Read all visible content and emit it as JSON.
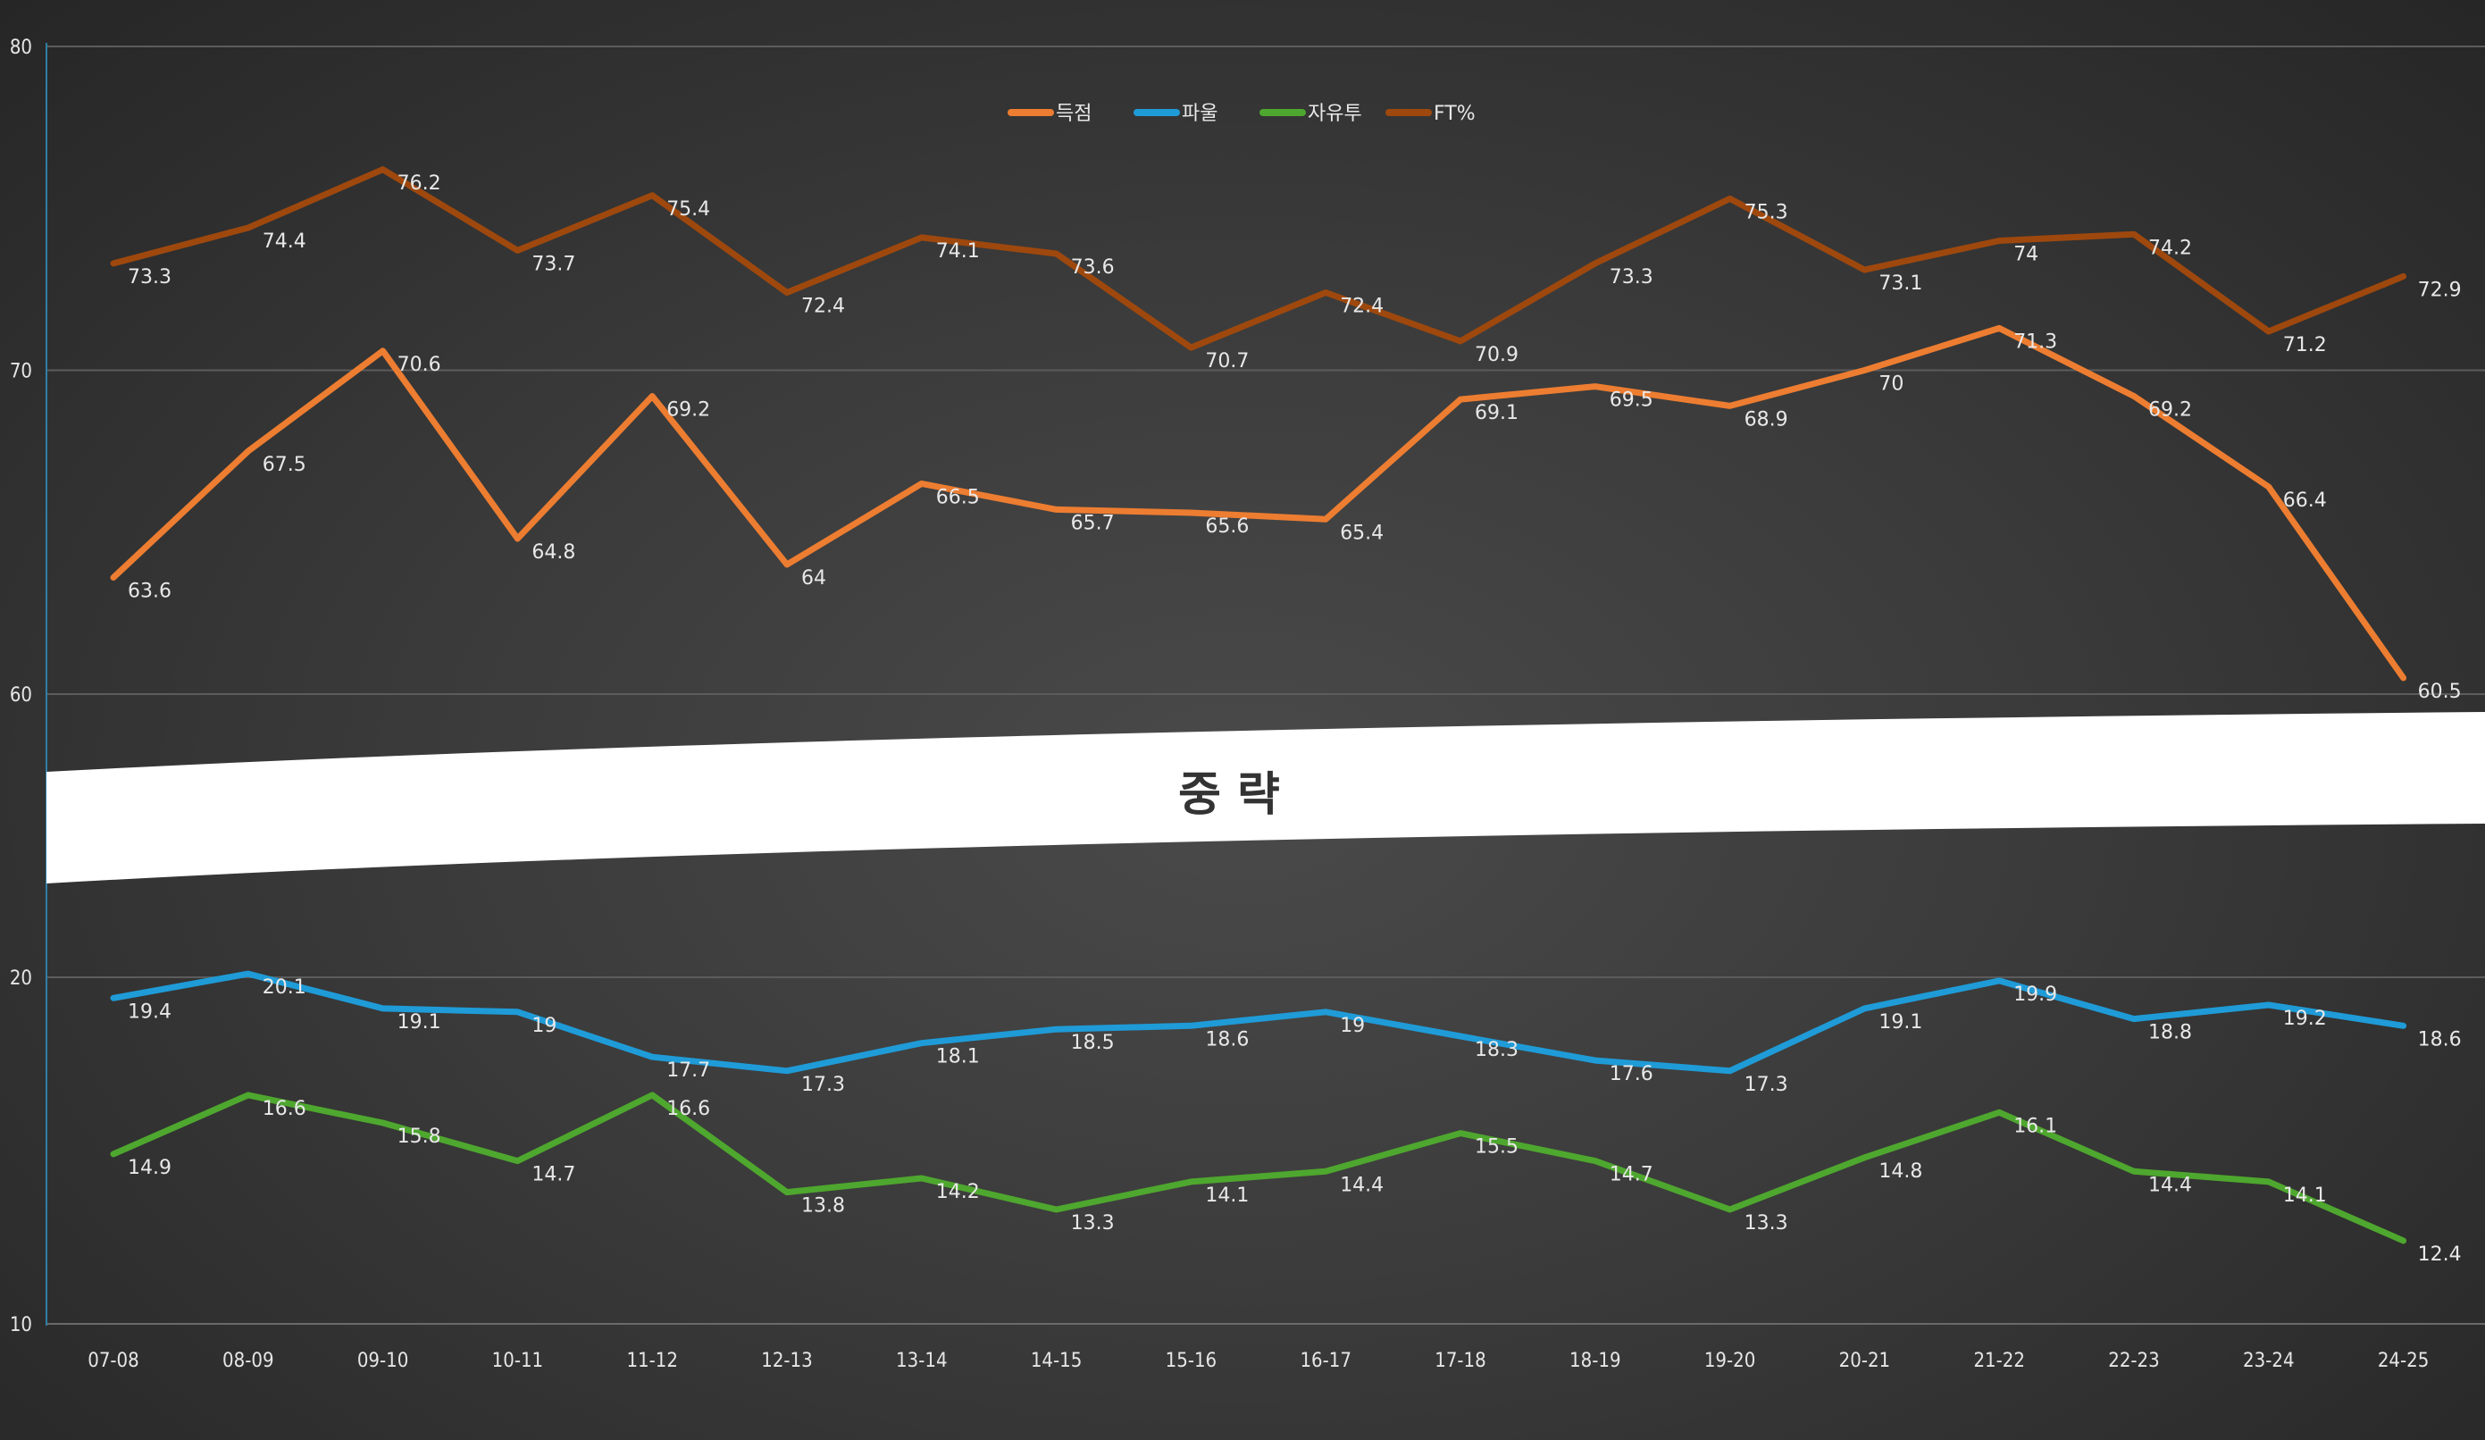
{
  "chart_data": {
    "type": "line",
    "categories": [
      "07-08",
      "08-09",
      "09-10",
      "10-11",
      "11-12",
      "12-13",
      "13-14",
      "14-15",
      "15-16",
      "16-17",
      "17-18",
      "18-19",
      "19-20",
      "20-21",
      "21-22",
      "22-23",
      "23-24",
      "24-25"
    ],
    "y_axis": {
      "broken": true,
      "upper_range": [
        60,
        80
      ],
      "lower_range": [
        10,
        20
      ],
      "ticks": [
        80,
        70,
        60,
        20,
        10
      ]
    },
    "break_label": "중략",
    "grid": true,
    "legend_position": "top",
    "series": [
      {
        "name": "득점",
        "color": "#ed7d31",
        "values": [
          63.6,
          67.5,
          70.6,
          64.8,
          69.2,
          64,
          66.5,
          65.7,
          65.6,
          65.4,
          69.1,
          69.5,
          68.9,
          70,
          71.3,
          69.2,
          66.4,
          60.5
        ]
      },
      {
        "name": "파울",
        "color": "#1f9bd7",
        "values": [
          19.4,
          20.1,
          19.1,
          19,
          17.7,
          17.3,
          18.1,
          18.5,
          18.6,
          19,
          18.3,
          17.6,
          17.3,
          19.1,
          19.9,
          18.8,
          19.2,
          18.6
        ]
      },
      {
        "name": "자유투",
        "color": "#4ea72e",
        "values": [
          14.9,
          16.6,
          15.8,
          14.7,
          16.6,
          13.8,
          14.2,
          13.3,
          14.1,
          14.4,
          15.5,
          14.7,
          13.3,
          14.8,
          16.1,
          14.4,
          14.1,
          12.4
        ]
      },
      {
        "name": "FT%",
        "color": "#9e480e",
        "values": [
          73.3,
          74.4,
          76.2,
          73.7,
          75.4,
          72.4,
          74.1,
          73.6,
          70.7,
          72.4,
          70.9,
          73.3,
          75.3,
          73.1,
          74,
          74.2,
          71.2,
          72.9
        ]
      }
    ]
  }
}
